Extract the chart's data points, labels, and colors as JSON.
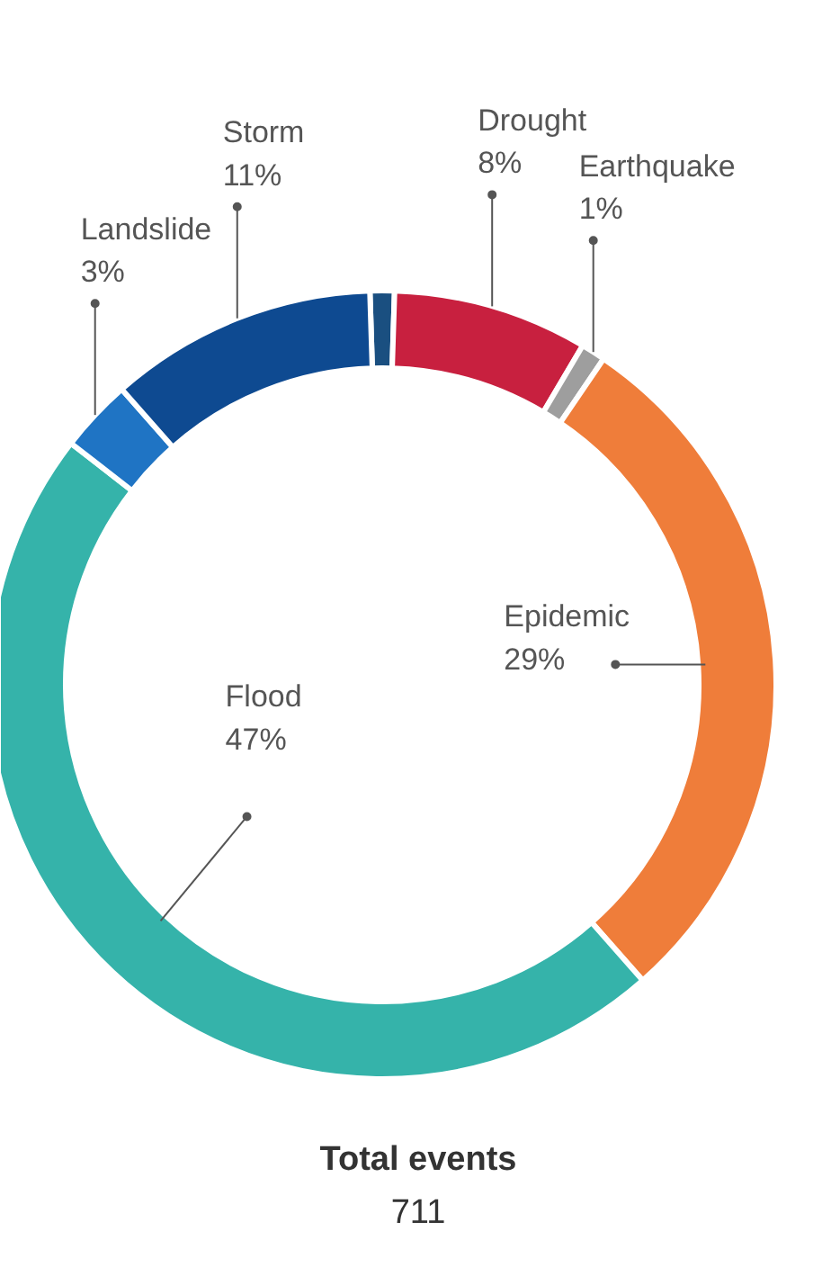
{
  "chart_data": {
    "type": "donut",
    "categories": [
      null,
      "Drought",
      "Earthquake",
      "Epidemic",
      "Flood",
      "Landslide",
      "Storm"
    ],
    "values": [
      1,
      8,
      1,
      29,
      47,
      3,
      11
    ],
    "colors": [
      "#1a4f80",
      "#c8203f",
      "#9e9e9e",
      "#ef7d3a",
      "#35b3aa",
      "#1f74c4",
      "#0e4a91"
    ],
    "value_labels": [
      null,
      "8%",
      "1%",
      "29%",
      "47%",
      "3%",
      "11%"
    ],
    "annotations": [
      "Total events",
      "711"
    ]
  }
}
